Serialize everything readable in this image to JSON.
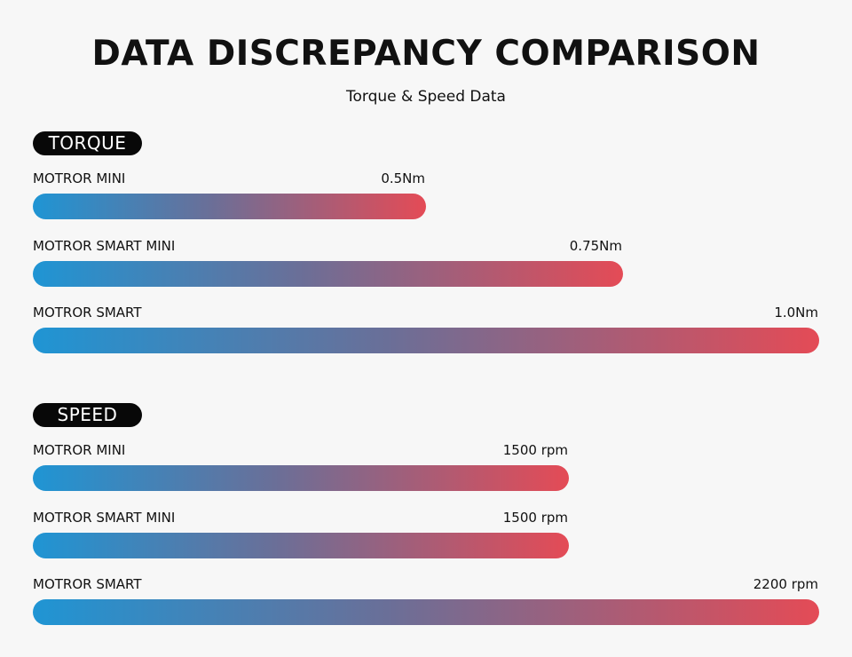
{
  "title": "DATA DISCREPANCY COMPARISON",
  "subtitle": "Torque & Speed Data",
  "colors": {
    "background": "#f7f7f7",
    "bar_start": "#1f95d4",
    "bar_end": "#e44b56",
    "pill_background": "#080808",
    "pill_text": "#ffffff"
  },
  "chart_data": [
    {
      "type": "bar",
      "orientation": "horizontal",
      "section_label": "TORQUE",
      "unit": "Nm",
      "categories": [
        "MOTROR MINI",
        "MOTROR SMART MINI",
        "MOTROR SMART"
      ],
      "values": [
        0.5,
        0.75,
        1.0
      ],
      "value_labels": [
        "0.5Nm",
        "0.75Nm",
        "1.0Nm"
      ],
      "xlim": [
        0,
        1.0
      ]
    },
    {
      "type": "bar",
      "orientation": "horizontal",
      "section_label": "SPEED",
      "unit": "rpm",
      "categories": [
        "MOTROR MINI",
        "MOTROR SMART MINI",
        "MOTROR SMART"
      ],
      "values": [
        1500,
        1500,
        2200
      ],
      "value_labels": [
        "1500 rpm",
        "1500 rpm",
        "2200 rpm"
      ],
      "xlim": [
        0,
        2200
      ]
    }
  ]
}
